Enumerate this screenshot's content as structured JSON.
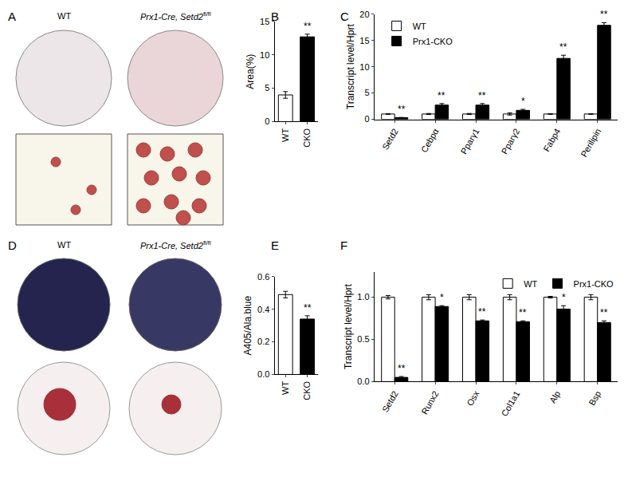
{
  "chart_data": [
    {
      "panel": "B",
      "type": "bar",
      "categories": [
        "WT",
        "CKO"
      ],
      "values": [
        4.0,
        12.7
      ],
      "errors": [
        0.5,
        0.4
      ],
      "colors": [
        "#ffffff",
        "#000000"
      ],
      "y_label": "Area(%)",
      "ylim": [
        0,
        15
      ],
      "yticks": [
        0,
        5,
        10,
        15
      ],
      "annotations": [
        null,
        "**"
      ]
    },
    {
      "panel": "C",
      "type": "bar",
      "categories": [
        "Setd2",
        "Cebpα",
        "Pparγ1",
        "Pparγ2",
        "Fabp4",
        "Perilipin"
      ],
      "series": [
        {
          "name": "WT",
          "color": "#ffffff",
          "values": [
            1,
            1,
            1,
            1,
            1,
            1
          ],
          "errors": [
            0.05,
            0.1,
            0.1,
            0.2,
            0.05,
            0.05
          ]
        },
        {
          "name": "Prx1-CKO",
          "color": "#000000",
          "values": [
            0.3,
            2.7,
            2.7,
            1.7,
            11.6,
            17.9
          ],
          "errors": [
            0.05,
            0.3,
            0.3,
            0.2,
            0.6,
            0.5
          ],
          "annotations": [
            "**",
            "**",
            "**",
            "*",
            "**",
            "**"
          ]
        }
      ],
      "y_label": "Transcript level/Hprt",
      "ylim": [
        0,
        20
      ],
      "yticks": [
        0,
        5,
        10,
        15,
        20
      ],
      "legend": "upper left"
    },
    {
      "panel": "E",
      "type": "bar",
      "categories": [
        "WT",
        "CKO"
      ],
      "values": [
        0.49,
        0.34
      ],
      "errors": [
        0.02,
        0.02
      ],
      "colors": [
        "#ffffff",
        "#000000"
      ],
      "y_label": "A405/Ala.blue",
      "ylim": [
        0,
        0.6
      ],
      "yticks": [
        {
          "value": 0,
          "label": "0.0"
        },
        0.2,
        0.4,
        0.6
      ],
      "annotations": [
        null,
        "**"
      ]
    },
    {
      "panel": "F",
      "type": "bar",
      "categories": [
        "Setd2",
        "Runx2",
        "Osx",
        "Col1a1",
        "Alp",
        "Bsp"
      ],
      "series": [
        {
          "name": "WT",
          "color": "#ffffff",
          "values": [
            1.0,
            1.0,
            1.0,
            1.0,
            1.0,
            1.0
          ],
          "errors": [
            0.02,
            0.03,
            0.03,
            0.03,
            0.01,
            0.03
          ]
        },
        {
          "name": "Prx1-CKO",
          "color": "#000000",
          "values": [
            0.05,
            0.89,
            0.72,
            0.71,
            0.86,
            0.7
          ],
          "errors": [
            0.01,
            0.01,
            0.01,
            0.01,
            0.04,
            0.02
          ],
          "annotations": [
            "**",
            "*",
            "**",
            "**",
            "*",
            "**"
          ]
        }
      ],
      "y_label": "Transcript level/Hprt",
      "ylim": [
        0,
        1.3
      ],
      "yticks": [
        {
          "value": 0,
          "label": "0.0"
        },
        0.5,
        {
          "value": 1,
          "label": "1.0"
        }
      ],
      "legend": "upper right"
    }
  ],
  "image_panels": [
    {
      "panel": "A",
      "labels": [
        {
          "text": "WT"
        },
        {
          "text": "Prx1-Cre, Setd2",
          "sup": "fl/fl"
        }
      ]
    },
    {
      "panel": "D",
      "labels": [
        {
          "text": "WT"
        },
        {
          "text": "Prx1-Cre, Setd2",
          "sup": "fl/fl"
        }
      ]
    }
  ]
}
